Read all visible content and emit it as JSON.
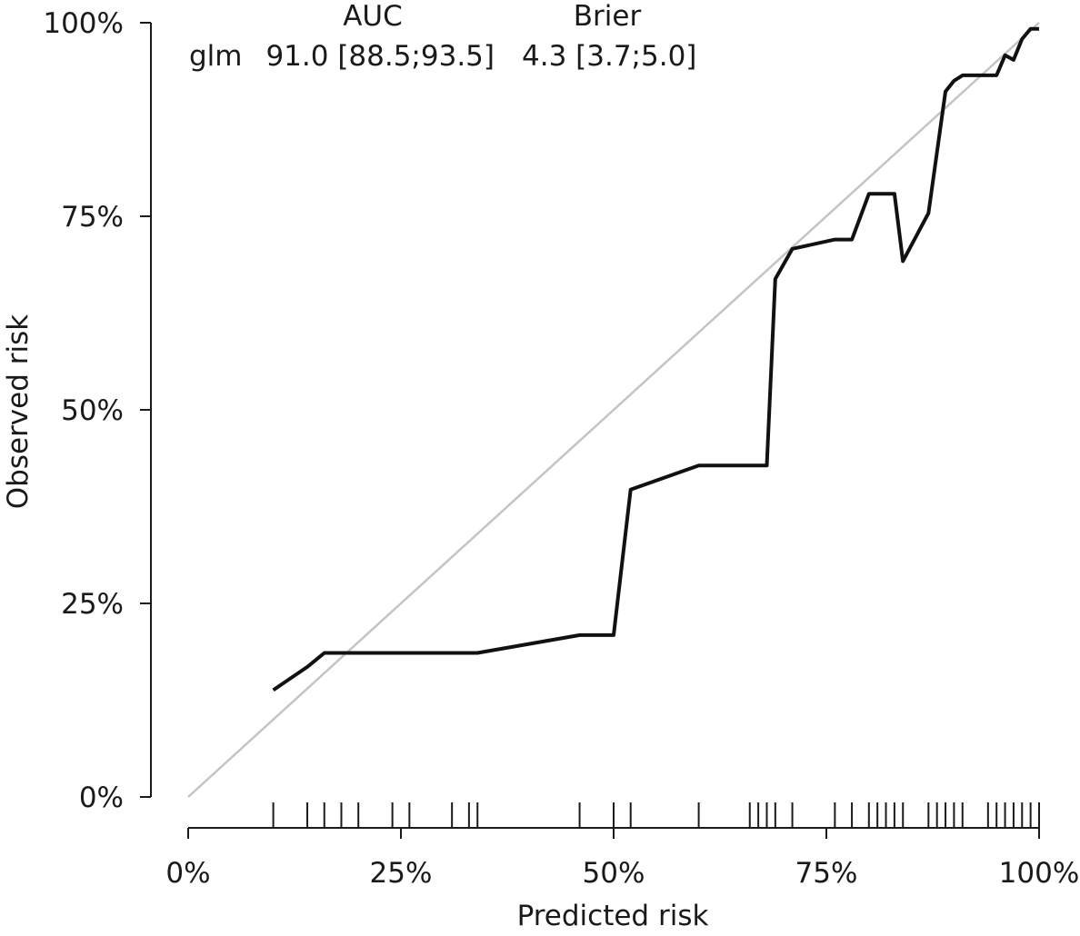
{
  "chart_data": {
    "type": "line",
    "xlabel": "Predicted risk",
    "ylabel": "Observed risk",
    "xlim": [
      0,
      100
    ],
    "ylim": [
      0,
      100
    ],
    "x_ticks": [
      {
        "value": 0,
        "label": "0%"
      },
      {
        "value": 25,
        "label": "25%"
      },
      {
        "value": 50,
        "label": "50%"
      },
      {
        "value": 75,
        "label": "75%"
      },
      {
        "value": 100,
        "label": "100%"
      }
    ],
    "y_ticks": [
      {
        "value": 0,
        "label": "0%"
      },
      {
        "value": 25,
        "label": "25%"
      },
      {
        "value": 50,
        "label": "50%"
      },
      {
        "value": 75,
        "label": "75%"
      },
      {
        "value": 100,
        "label": "100%"
      }
    ],
    "legend": {
      "headers": [
        "AUC",
        "Brier"
      ],
      "rows": [
        {
          "name": "glm",
          "auc": "91.0 [88.5;93.5]",
          "brier": "4.3 [3.7;5.0]"
        }
      ]
    },
    "reference_line": {
      "x": [
        0,
        100
      ],
      "y": [
        0,
        100
      ],
      "color": "#c4c4c4"
    },
    "series": [
      {
        "name": "glm",
        "color": "#111111",
        "x": [
          10,
          14,
          16,
          20,
          34,
          46,
          50,
          52,
          60,
          68,
          69,
          71,
          76,
          78,
          80,
          83,
          84,
          87,
          89,
          90,
          91,
          95,
          96,
          97,
          98,
          99,
          100
        ],
        "y": [
          13.8,
          16.8,
          18.6,
          18.6,
          18.6,
          20.9,
          20.9,
          39.7,
          42.8,
          42.8,
          66.9,
          70.8,
          72.0,
          72.0,
          77.9,
          77.9,
          69.2,
          75.4,
          91.1,
          92.5,
          93.2,
          93.2,
          95.8,
          95.2,
          97.9,
          99.2,
          99.2
        ]
      }
    ],
    "rug": [
      10,
      14,
      16,
      18,
      20,
      24,
      26,
      31,
      33,
      34,
      46,
      50,
      52,
      60,
      66,
      67,
      68,
      69,
      71,
      76,
      78,
      80,
      81,
      82,
      83,
      84,
      87,
      88,
      89,
      90,
      91,
      94,
      95,
      96,
      97,
      98,
      99,
      100
    ]
  }
}
